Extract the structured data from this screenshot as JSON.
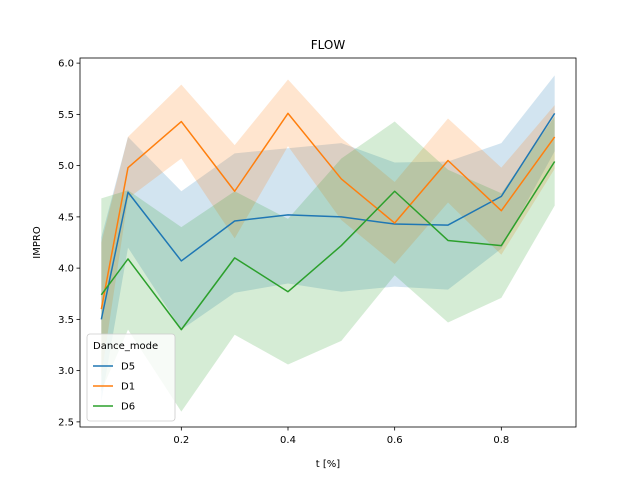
{
  "chart_data": {
    "type": "line",
    "title": "FLOW",
    "xlabel": "t [%]",
    "ylabel": "IMPRO",
    "xlim": [
      0.01,
      0.94
    ],
    "ylim": [
      2.45,
      6.05
    ],
    "xticks": [
      0.2,
      0.4,
      0.6,
      0.8
    ],
    "xtick_labels": [
      "0.2",
      "0.4",
      "0.6",
      "0.8"
    ],
    "yticks": [
      2.5,
      3.0,
      3.5,
      4.0,
      4.5,
      5.0,
      5.5,
      6.0
    ],
    "ytick_labels": [
      "2.5",
      "3.0",
      "3.5",
      "4.0",
      "4.5",
      "5.0",
      "5.5",
      "6.0"
    ],
    "x": [
      0.05,
      0.1,
      0.2,
      0.3,
      0.4,
      0.5,
      0.6,
      0.7,
      0.8,
      0.9
    ],
    "grid": false,
    "legend": {
      "title": "Dance_mode",
      "position": "lower-left"
    },
    "series": [
      {
        "name": "D5",
        "color": "#1f77b4",
        "values": [
          3.5,
          4.74,
          4.07,
          4.46,
          4.52,
          4.5,
          4.43,
          4.42,
          4.7,
          5.51
        ],
        "ci_upper": [
          4.3,
          5.28,
          4.75,
          5.12,
          5.17,
          5.22,
          5.03,
          5.04,
          5.22,
          5.88
        ],
        "ci_lower": [
          2.7,
          4.2,
          3.4,
          3.76,
          3.85,
          3.77,
          3.82,
          3.79,
          4.19,
          5.14
        ]
      },
      {
        "name": "D1",
        "color": "#ff7f0e",
        "values": [
          3.6,
          4.98,
          5.43,
          4.75,
          5.51,
          4.87,
          4.44,
          5.05,
          4.56,
          5.28
        ],
        "ci_upper": [
          4.25,
          5.28,
          5.79,
          5.2,
          5.84,
          5.27,
          4.84,
          5.46,
          4.98,
          5.59
        ],
        "ci_lower": [
          2.95,
          4.68,
          5.07,
          4.29,
          5.19,
          4.47,
          4.04,
          4.64,
          4.13,
          4.97
        ]
      },
      {
        "name": "D6",
        "color": "#2ca02c",
        "values": [
          3.74,
          4.09,
          3.4,
          4.1,
          3.77,
          4.22,
          4.75,
          4.27,
          4.22,
          5.04
        ],
        "ci_upper": [
          4.68,
          4.76,
          4.4,
          4.75,
          4.48,
          5.07,
          5.43,
          4.96,
          4.73,
          5.48
        ],
        "ci_lower": [
          2.8,
          3.4,
          2.6,
          3.35,
          3.06,
          3.29,
          3.93,
          3.47,
          3.71,
          4.61
        ]
      }
    ]
  }
}
